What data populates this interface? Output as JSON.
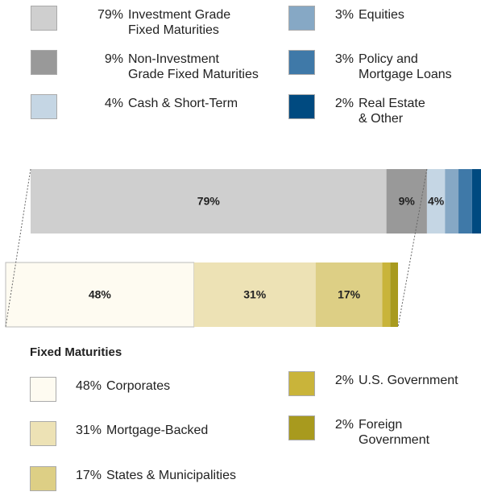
{
  "chart_data": [
    {
      "type": "stacked-bar",
      "xlim": [
        0,
        100
      ],
      "series": [
        {
          "name": "Investment Grade\nFixed Maturities",
          "color": "#cfcfcf",
          "values": [
            79
          ],
          "value_labels": [
            "79%"
          ]
        },
        {
          "name": "Non-Investment\nGrade Fixed Maturities",
          "color": "#999999",
          "values": [
            9
          ],
          "value_labels": [
            "9%"
          ]
        },
        {
          "name": "Cash & Short-Term",
          "color": "#c5d6e4",
          "values": [
            4
          ],
          "value_labels": [
            "4%"
          ]
        },
        {
          "name": "Equities",
          "color": "#86a8c5",
          "values": [
            3
          ],
          "value_labels": [
            "3%"
          ]
        },
        {
          "name": "Policy and\nMortgage Loans",
          "color": "#3f79a8",
          "values": [
            3
          ],
          "value_labels": [
            "3%"
          ]
        },
        {
          "name": "Real Estate\n& Other",
          "color": "#004a80",
          "values": [
            2
          ],
          "value_labels": [
            "2%"
          ]
        }
      ]
    },
    {
      "type": "stacked-bar",
      "title": "Fixed Maturities",
      "xlim": [
        0,
        100
      ],
      "series": [
        {
          "name": "Corporates",
          "color": "#fefbf1",
          "values": [
            48
          ],
          "value_labels": [
            "48%"
          ]
        },
        {
          "name": "Mortgage-Backed",
          "color": "#ede2b5",
          "values": [
            31
          ],
          "value_labels": [
            "31%"
          ]
        },
        {
          "name": "States & Municipalities",
          "color": "#ddcf85",
          "values": [
            17
          ],
          "value_labels": [
            "17%"
          ]
        },
        {
          "name": "U.S. Government",
          "color": "#c9b43a",
          "values": [
            2
          ],
          "value_labels": [
            "2%"
          ]
        },
        {
          "name": "Foreign\nGovernment",
          "color": "#a89a1e",
          "values": [
            2
          ],
          "value_labels": [
            "2%"
          ]
        }
      ]
    }
  ]
}
